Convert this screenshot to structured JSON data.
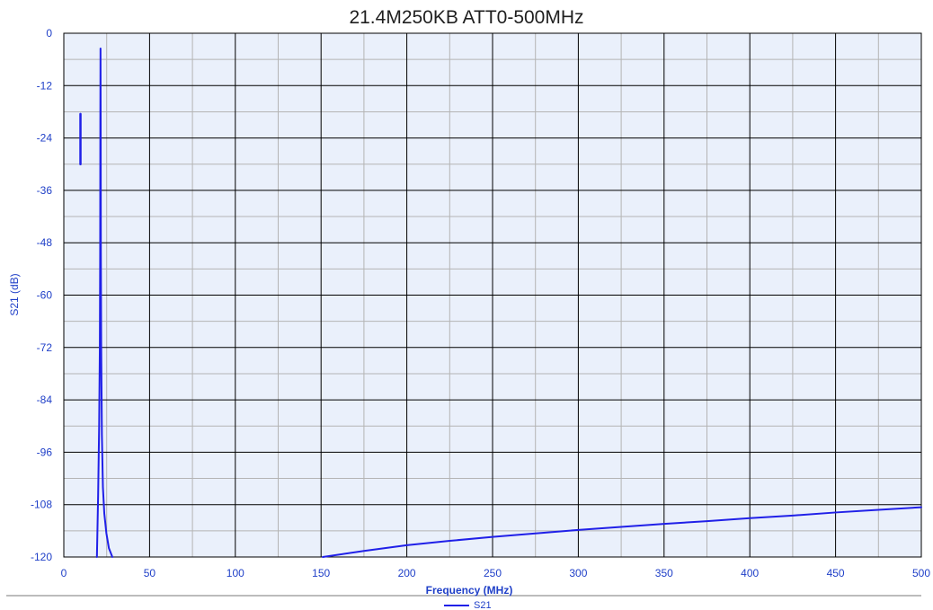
{
  "chart_data": {
    "type": "line",
    "title": "21.4M250KB ATT0-500MHz",
    "xlabel": "Frequency (MHz)",
    "ylabel": "S21 (dB)",
    "xlim": [
      0,
      500
    ],
    "ylim": [
      -120,
      0
    ],
    "x_ticks": [
      0,
      50,
      100,
      150,
      200,
      250,
      300,
      350,
      400,
      450,
      500
    ],
    "y_ticks": [
      0,
      -12,
      -24,
      -36,
      -48,
      -60,
      -72,
      -84,
      -96,
      -108,
      -120
    ],
    "grid": true,
    "legend_position": "bottom-center",
    "colors": {
      "series": "#2020e8",
      "plot_background": "#eaf0fb",
      "major_grid": "#000000",
      "minor_grid": "#b4b4b4",
      "tick_labels": "#2040c8"
    },
    "series": [
      {
        "name": "S21",
        "segments": [
          [
            [
              19.3,
              -120.0
            ],
            [
              20.0,
              -106.0
            ],
            [
              20.6,
              -90.0
            ],
            [
              21.0,
              -72.0
            ],
            [
              21.2,
              -50.0
            ],
            [
              21.3,
              -20.0
            ],
            [
              21.4,
              -3.5
            ],
            [
              21.5,
              -20.0
            ],
            [
              21.6,
              -50.0
            ],
            [
              21.8,
              -72.0
            ],
            [
              22.2,
              -92.0
            ],
            [
              22.8,
              -104.0
            ],
            [
              23.6,
              -110.0
            ],
            [
              24.8,
              -114.5
            ],
            [
              26.3,
              -118.0
            ],
            [
              28.3,
              -120.0
            ]
          ],
          [
            [
              9.7,
              -18.5
            ],
            [
              9.7,
              -30.0
            ]
          ],
          [
            [
              151.0,
              -120.0
            ],
            [
              175.0,
              -118.6
            ],
            [
              200.0,
              -117.3
            ],
            [
              225.0,
              -116.3
            ],
            [
              250.0,
              -115.4
            ],
            [
              275.0,
              -114.6
            ],
            [
              300.0,
              -113.8
            ],
            [
              325.0,
              -113.1
            ],
            [
              350.0,
              -112.4
            ],
            [
              375.0,
              -111.8
            ],
            [
              400.0,
              -111.1
            ],
            [
              425.0,
              -110.5
            ],
            [
              450.0,
              -109.8
            ],
            [
              475.0,
              -109.2
            ],
            [
              500.0,
              -108.6
            ]
          ]
        ]
      }
    ]
  }
}
